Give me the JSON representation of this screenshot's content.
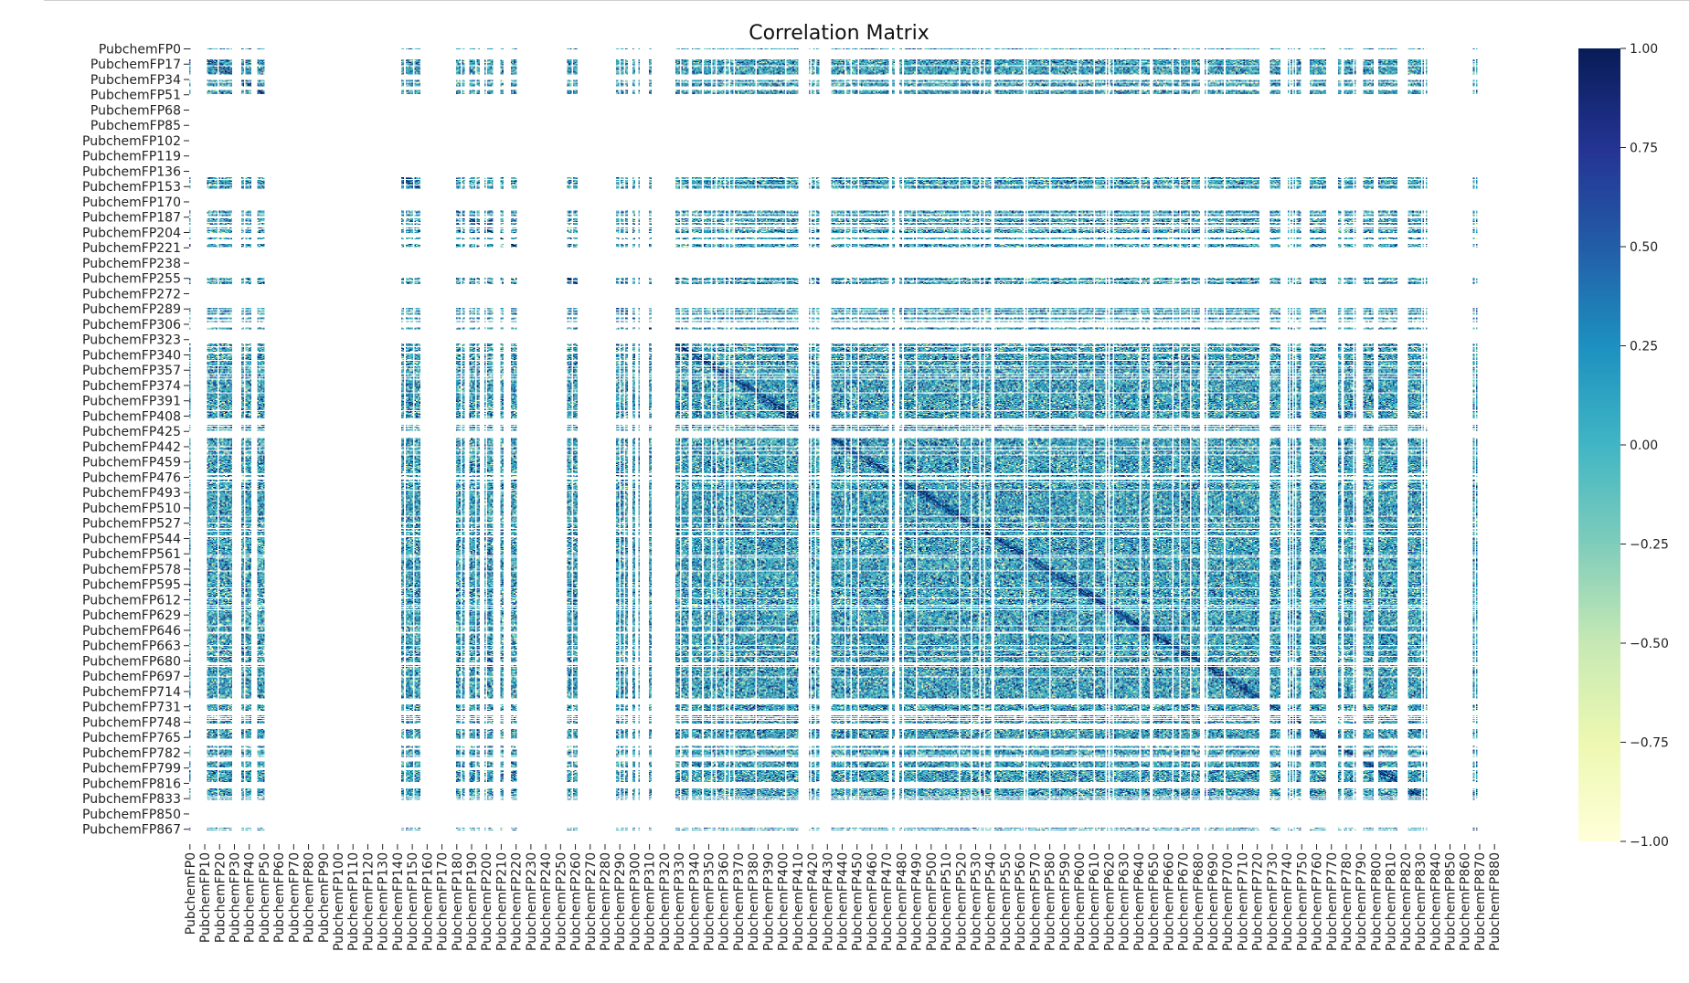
{
  "chart_data": {
    "type": "heatmap",
    "title": "Correlation Matrix",
    "xlabel": "",
    "ylabel": "",
    "colormap": "YlGnBu",
    "colormap_stops": [
      "#ffffd9",
      "#edf8b1",
      "#c7e9b4",
      "#7fcdbb",
      "#41b6c4",
      "#1d91c0",
      "#225ea8",
      "#253494",
      "#081d58"
    ],
    "missing_color": "#ffffff",
    "n_features": 881,
    "value_range": [
      -1.0,
      1.0
    ],
    "x_tick_labels": [
      "PubchemFP0",
      "PubchemFP10",
      "PubchemFP20",
      "PubchemFP30",
      "PubchemFP40",
      "PubchemFP50",
      "PubchemFP60",
      "PubchemFP70",
      "PubchemFP80",
      "PubchemFP90",
      "PubchemFP100",
      "PubchemFP110",
      "PubchemFP120",
      "PubchemFP130",
      "PubchemFP140",
      "PubchemFP150",
      "PubchemFP160",
      "PubchemFP170",
      "PubchemFP180",
      "PubchemFP190",
      "PubchemFP200",
      "PubchemFP210",
      "PubchemFP220",
      "PubchemFP230",
      "PubchemFP240",
      "PubchemFP250",
      "PubchemFP260",
      "PubchemFP270",
      "PubchemFP280",
      "PubchemFP290",
      "PubchemFP300",
      "PubchemFP310",
      "PubchemFP320",
      "PubchemFP330",
      "PubchemFP340",
      "PubchemFP350",
      "PubchemFP360",
      "PubchemFP370",
      "PubchemFP380",
      "PubchemFP390",
      "PubchemFP400",
      "PubchemFP410",
      "PubchemFP420",
      "PubchemFP430",
      "PubchemFP440",
      "PubchemFP450",
      "PubchemFP460",
      "PubchemFP470",
      "PubchemFP480",
      "PubchemFP490",
      "PubchemFP500",
      "PubchemFP510",
      "PubchemFP520",
      "PubchemFP530",
      "PubchemFP540",
      "PubchemFP550",
      "PubchemFP560",
      "PubchemFP570",
      "PubchemFP580",
      "PubchemFP590",
      "PubchemFP600",
      "PubchemFP610",
      "PubchemFP620",
      "PubchemFP630",
      "PubchemFP640",
      "PubchemFP650",
      "PubchemFP660",
      "PubchemFP670",
      "PubchemFP680",
      "PubchemFP690",
      "PubchemFP700",
      "PubchemFP710",
      "PubchemFP720",
      "PubchemFP730",
      "PubchemFP740",
      "PubchemFP750",
      "PubchemFP760",
      "PubchemFP770",
      "PubchemFP780",
      "PubchemFP790",
      "PubchemFP800",
      "PubchemFP810",
      "PubchemFP820",
      "PubchemFP830",
      "PubchemFP840",
      "PubchemFP850",
      "PubchemFP860",
      "PubchemFP870",
      "PubchemFP880"
    ],
    "y_tick_labels": [
      "PubchemFP0",
      "PubchemFP17",
      "PubchemFP34",
      "PubchemFP51",
      "PubchemFP68",
      "PubchemFP85",
      "PubchemFP102",
      "PubchemFP119",
      "PubchemFP136",
      "PubchemFP153",
      "PubchemFP170",
      "PubchemFP187",
      "PubchemFP204",
      "PubchemFP221",
      "PubchemFP238",
      "PubchemFP255",
      "PubchemFP272",
      "PubchemFP289",
      "PubchemFP306",
      "PubchemFP323",
      "PubchemFP340",
      "PubchemFP357",
      "PubchemFP374",
      "PubchemFP391",
      "PubchemFP408",
      "PubchemFP425",
      "PubchemFP442",
      "PubchemFP459",
      "PubchemFP476",
      "PubchemFP493",
      "PubchemFP510",
      "PubchemFP527",
      "PubchemFP544",
      "PubchemFP561",
      "PubchemFP578",
      "PubchemFP595",
      "PubchemFP612",
      "PubchemFP629",
      "PubchemFP646",
      "PubchemFP663",
      "PubchemFP680",
      "PubchemFP697",
      "PubchemFP714",
      "PubchemFP731",
      "PubchemFP748",
      "PubchemFP765",
      "PubchemFP782",
      "PubchemFP799",
      "PubchemFP816",
      "PubchemFP833",
      "PubchemFP850",
      "PubchemFP867"
    ],
    "colorbar": {
      "range": [
        -1.0,
        1.0
      ],
      "ticks": [
        1.0,
        0.75,
        0.5,
        0.25,
        0.0,
        -0.25,
        -0.5,
        -0.75,
        -1.0
      ],
      "tick_labels": [
        "1.00",
        "0.75",
        "0.50",
        "0.25",
        "0.00",
        "−0.25",
        "−0.50",
        "−0.75",
        "−1.00"
      ]
    },
    "feature_blocks": [
      {
        "range": [
          0,
          1
        ],
        "density": 0.9
      },
      {
        "range": [
          12,
          19
        ],
        "density": 0.95
      },
      {
        "range": [
          20,
          29
        ],
        "density": 0.85
      },
      {
        "range": [
          35,
          42
        ],
        "density": 0.8
      },
      {
        "range": [
          46,
          51
        ],
        "density": 0.75
      },
      {
        "range": [
          143,
          156
        ],
        "density": 0.9
      },
      {
        "range": [
          180,
          186
        ],
        "density": 0.75
      },
      {
        "range": [
          189,
          196
        ],
        "density": 0.7
      },
      {
        "range": [
          199,
          205
        ],
        "density": 0.7
      },
      {
        "range": [
          209,
          214
        ],
        "density": 0.7
      },
      {
        "range": [
          217,
          222
        ],
        "density": 0.75
      },
      {
        "range": [
          255,
          262
        ],
        "density": 0.95
      },
      {
        "range": [
          288,
          296
        ],
        "density": 0.75
      },
      {
        "range": [
          298,
          304
        ],
        "density": 0.7
      },
      {
        "range": [
          310,
          313
        ],
        "density": 0.6
      },
      {
        "range": [
          328,
          411
        ],
        "density": 0.88
      },
      {
        "range": [
          418,
          425
        ],
        "density": 0.8
      },
      {
        "range": [
          432,
          722
        ],
        "density": 0.9
      },
      {
        "range": [
          729,
          736
        ],
        "density": 0.75
      },
      {
        "range": [
          741,
          750
        ],
        "density": 0.7
      },
      {
        "range": [
          755,
          767
        ],
        "density": 0.7
      },
      {
        "range": [
          772,
          787
        ],
        "density": 0.7
      },
      {
        "range": [
          791,
          799
        ],
        "density": 0.7
      },
      {
        "range": [
          802,
          815
        ],
        "density": 0.75
      },
      {
        "range": [
          820,
          835
        ],
        "density": 0.75
      },
      {
        "range": [
          851,
          853
        ],
        "density": 0.5
      },
      {
        "range": [
          866,
          869
        ],
        "density": 0.4
      }
    ]
  }
}
